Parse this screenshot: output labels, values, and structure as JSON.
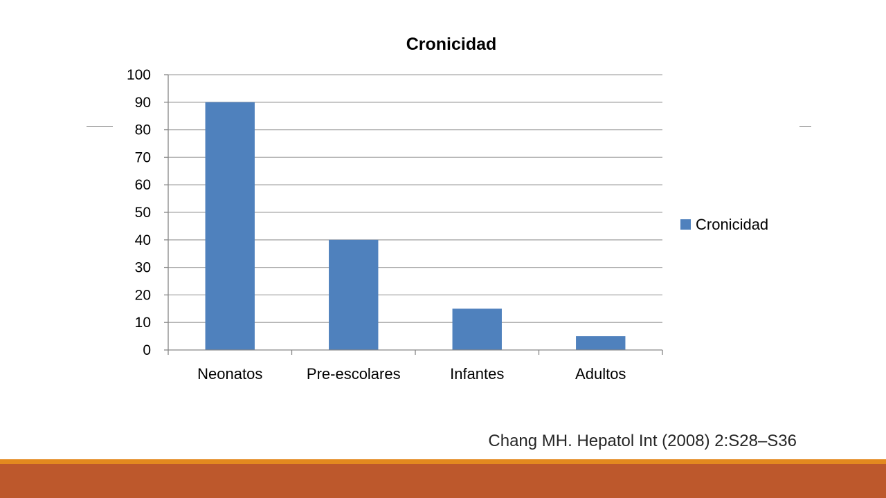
{
  "colors": {
    "bar": "#4f81bd",
    "grid": "#a6a6a6",
    "axis": "#868686",
    "footer_band": "#bd582c",
    "footer_line": "#e3891f",
    "side_rule": "#7f7f7f"
  },
  "citation": "Chang MH. Hepatol Int (2008) 2:S28–S36",
  "chart_data": {
    "type": "bar",
    "title": "Cronicidad",
    "categories": [
      "Neonatos",
      "Pre-escolares",
      "Infantes",
      "Adultos"
    ],
    "series": [
      {
        "name": "Cronicidad",
        "values": [
          90,
          40,
          15,
          5
        ]
      }
    ],
    "xlabel": "",
    "ylabel": "",
    "ylim": [
      0,
      100
    ],
    "yticks": [
      0,
      10,
      20,
      30,
      40,
      50,
      60,
      70,
      80,
      90,
      100
    ],
    "grid": true,
    "legend_position": "right"
  }
}
